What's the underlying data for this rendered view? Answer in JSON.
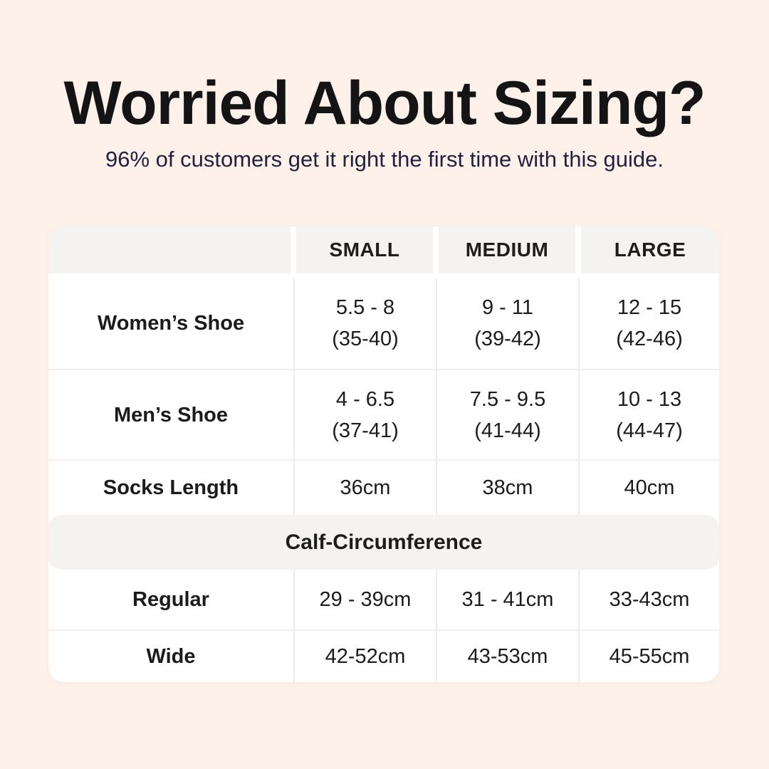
{
  "page": {
    "background_color": "#fdf1ea",
    "card_color": "#ffffff",
    "band_color": "#f4f3f2",
    "title_color": "#141414",
    "subtitle_color": "#22223e"
  },
  "header": {
    "title": "Worried About Sizing?",
    "subtitle": "96% of customers get it right the first time with this guide."
  },
  "size_table": {
    "columns": [
      "SMALL",
      "MEDIUM",
      "LARGE"
    ],
    "rows": [
      {
        "label": "Women’s Shoe",
        "cells": [
          {
            "main": "5.5 - 8",
            "sub": "(35-40)"
          },
          {
            "main": "9 - 11",
            "sub": "(39-42)"
          },
          {
            "main": "12 - 15",
            "sub": "(42-46)"
          }
        ]
      },
      {
        "label": "Men’s Shoe",
        "cells": [
          {
            "main": "4 - 6.5",
            "sub": "(37-41)"
          },
          {
            "main": "7.5 - 9.5",
            "sub": "(41-44)"
          },
          {
            "main": "10 - 13",
            "sub": "(44-47)"
          }
        ]
      },
      {
        "label": "Socks Length",
        "cells": [
          {
            "main": "36cm"
          },
          {
            "main": "38cm"
          },
          {
            "main": "40cm"
          }
        ]
      }
    ],
    "section_header": "Calf-Circumference",
    "calf_rows": [
      {
        "label": "Regular",
        "cells": [
          {
            "main": "29 - 39cm"
          },
          {
            "main": "31 - 41cm"
          },
          {
            "main": "33-43cm"
          }
        ]
      },
      {
        "label": "Wide",
        "cells": [
          {
            "main": "42-52cm"
          },
          {
            "main": "43-53cm"
          },
          {
            "main": "45-55cm"
          }
        ]
      }
    ]
  },
  "chart_data": {
    "type": "table",
    "title": "Worried About Sizing?",
    "subtitle": "96% of customers get it right the first time with this guide.",
    "columns": [
      "",
      "SMALL",
      "MEDIUM",
      "LARGE"
    ],
    "rows": [
      [
        "Women’s Shoe",
        "5.5 - 8 (35-40)",
        "9 - 11 (39-42)",
        "12 - 15 (42-46)"
      ],
      [
        "Men’s Shoe",
        "4 - 6.5 (37-41)",
        "7.5 - 9.5 (41-44)",
        "10 - 13 (44-47)"
      ],
      [
        "Socks Length",
        "36cm",
        "38cm",
        "40cm"
      ],
      [
        "Calf-Circumference",
        "",
        "",
        ""
      ],
      [
        "Regular",
        "29 - 39cm",
        "31 - 41cm",
        "33-43cm"
      ],
      [
        "Wide",
        "42-52cm",
        "43-53cm",
        "45-55cm"
      ]
    ]
  }
}
